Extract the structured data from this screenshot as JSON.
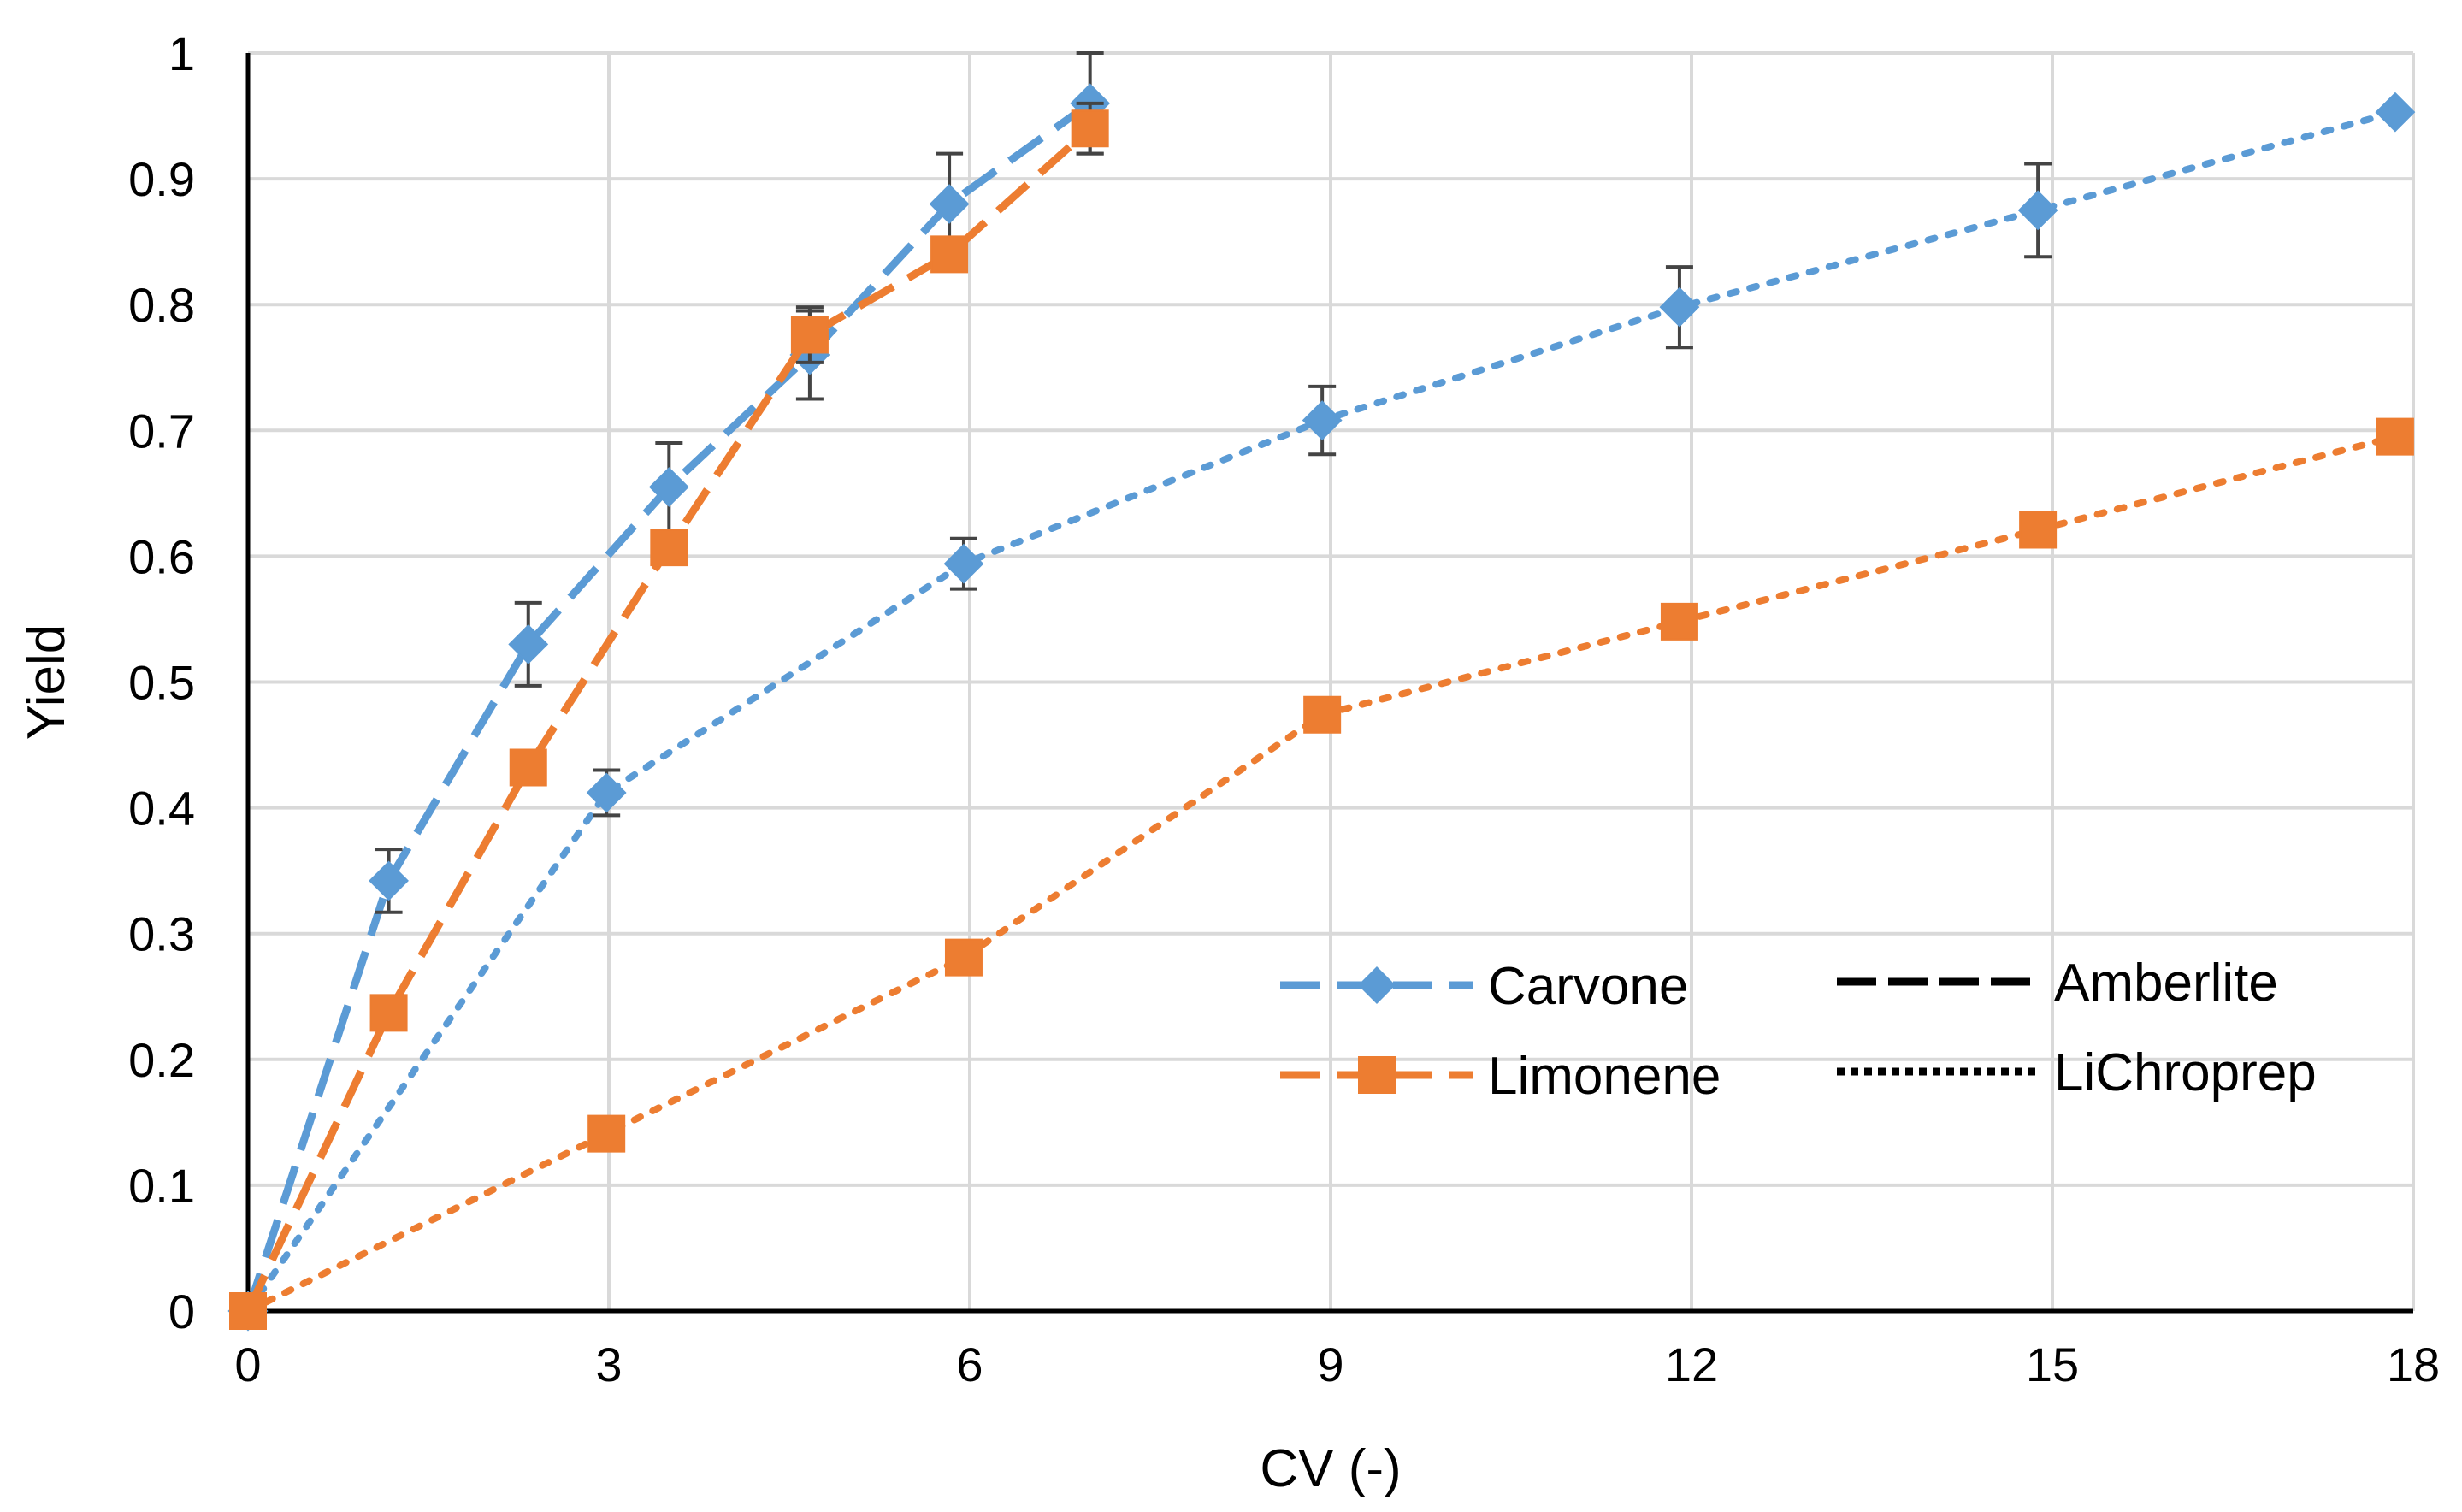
{
  "chart_data": {
    "type": "line",
    "title": "",
    "xlabel": "CV (-)",
    "ylabel": "Yield",
    "xlim": [
      0,
      18
    ],
    "ylim": [
      0,
      1
    ],
    "x_ticks": [
      {
        "value": 0,
        "label": "0"
      },
      {
        "value": 3,
        "label": "3"
      },
      {
        "value": 6,
        "label": "6"
      },
      {
        "value": 9,
        "label": "9"
      },
      {
        "value": 12,
        "label": "12"
      },
      {
        "value": 15,
        "label": "15"
      },
      {
        "value": 18,
        "label": "18"
      }
    ],
    "y_ticks": [
      {
        "value": 0,
        "label": "0"
      },
      {
        "value": 0.1,
        "label": "0.1"
      },
      {
        "value": 0.2,
        "label": "0.2"
      },
      {
        "value": 0.3,
        "label": "0.3"
      },
      {
        "value": 0.4,
        "label": "0.4"
      },
      {
        "value": 0.5,
        "label": "0.5"
      },
      {
        "value": 0.6,
        "label": "0.6"
      },
      {
        "value": 0.7,
        "label": "0.7"
      },
      {
        "value": 0.8,
        "label": "0.8"
      },
      {
        "value": 0.9,
        "label": "0.9"
      },
      {
        "value": 1,
        "label": "1"
      }
    ],
    "grid": true,
    "legend_position": "bottom-right",
    "legend": {
      "compounds": [
        {
          "label": "Carvone",
          "color": "#5B9BD5",
          "marker": "diamond"
        },
        {
          "label": "Limonene",
          "color": "#ED7D31",
          "marker": "square"
        }
      ],
      "resins": [
        {
          "label": "Amberlite",
          "style": "dashed"
        },
        {
          "label": "LiChroprep",
          "style": "dotted"
        }
      ]
    },
    "series": [
      {
        "name": "Carvone - Amberlite",
        "compound": "Carvone",
        "resin": "Amberlite",
        "color": "#5B9BD5",
        "marker": "diamond",
        "line_style": "dashed",
        "x": [
          0,
          1.17,
          2.33,
          3.5,
          4.67,
          5.83,
          7.0
        ],
        "y": [
          0,
          0.342,
          0.53,
          0.655,
          0.76,
          0.88,
          0.96
        ],
        "err": [
          0,
          0.025,
          0.033,
          0.035,
          0.035,
          0.04,
          0.04
        ]
      },
      {
        "name": "Limonene - Amberlite",
        "compound": "Limonene",
        "resin": "Amberlite",
        "color": "#ED7D31",
        "marker": "square",
        "line_style": "dashed",
        "x": [
          0,
          1.17,
          2.33,
          3.5,
          4.67,
          5.83,
          7.0
        ],
        "y": [
          0,
          0.237,
          0.432,
          0.607,
          0.776,
          0.84,
          0.94
        ],
        "err": [
          0,
          0,
          0,
          0,
          0.022,
          0,
          0.02
        ]
      },
      {
        "name": "Carvone - LiChroprep",
        "compound": "Carvone",
        "resin": "LiChroprep",
        "color": "#5B9BD5",
        "marker": "diamond",
        "line_style": "dotted",
        "x": [
          0,
          2.98,
          5.95,
          8.93,
          11.9,
          14.88,
          17.85
        ],
        "y": [
          0,
          0.412,
          0.594,
          0.708,
          0.798,
          0.875,
          0.953
        ],
        "err": [
          0,
          0.018,
          0.02,
          0.027,
          0.032,
          0.037,
          0
        ]
      },
      {
        "name": "Limonene - LiChroprep",
        "compound": "Limonene",
        "resin": "LiChroprep",
        "color": "#ED7D31",
        "marker": "square",
        "line_style": "dotted",
        "x": [
          0,
          2.98,
          5.95,
          8.93,
          11.9,
          14.88,
          17.85
        ],
        "y": [
          0,
          0.141,
          0.281,
          0.474,
          0.548,
          0.621,
          0.695
        ],
        "err": [
          0,
          0,
          0,
          0,
          0,
          0,
          0
        ]
      }
    ]
  }
}
